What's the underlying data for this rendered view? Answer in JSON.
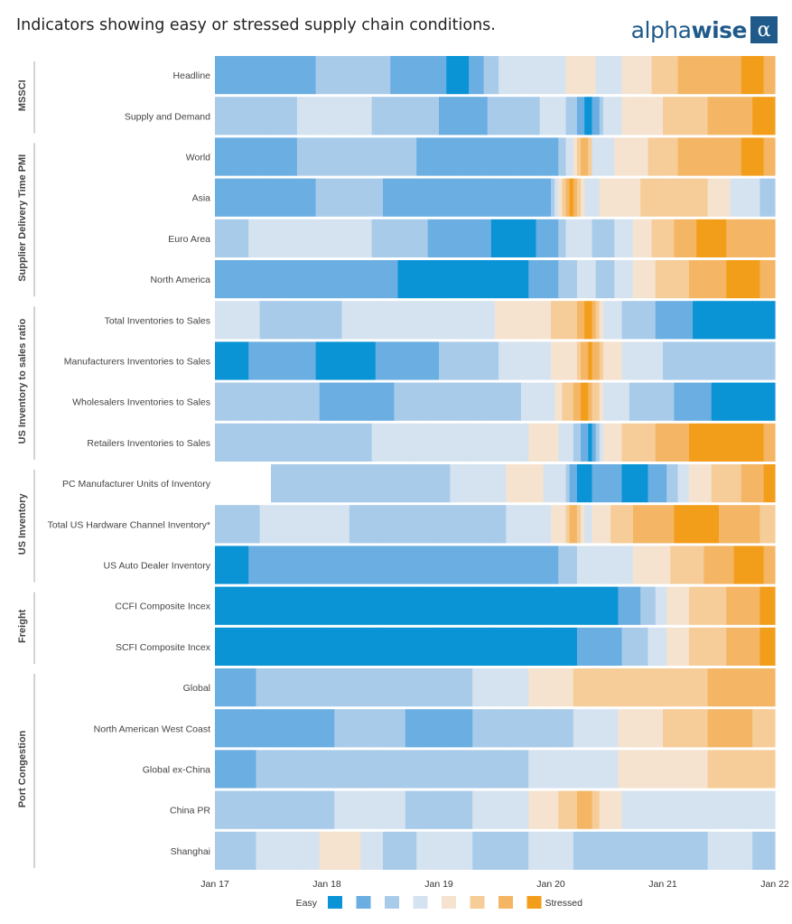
{
  "title": "Indicators showing easy or stressed supply chain conditions.",
  "logo": {
    "text_plain": "alpha",
    "text_bold": "wise",
    "mark": "α"
  },
  "chart_data": {
    "type": "heatmap",
    "x_ticks": [
      "Jan 17",
      "Jan 18",
      "Jan 19",
      "Jan 20",
      "Jan 21",
      "Jan 22"
    ],
    "x_range": [
      "Jan 17",
      "Jan 22"
    ],
    "legend": {
      "left_label": "Easy",
      "right_label": "Stressed",
      "colors": [
        "#0a94d6",
        "#6aaee2",
        "#a9cbea",
        "#d5e3f0",
        "#f5e3cf",
        "#f6cd98",
        "#f4b665",
        "#f29e1b"
      ]
    },
    "levels_scale": "0 = Easy ... 7 = Stressed",
    "groups": [
      {
        "name": "MSSCI",
        "rows": [
          "Headline",
          "Supply and Demand"
        ]
      },
      {
        "name": "Supplier Delivery Time PMI",
        "rows": [
          "World",
          "Asia",
          "Euro Area",
          "North America"
        ]
      },
      {
        "name": "US Inventory to sales ratio",
        "rows": [
          "Total Inventories to Sales",
          "Manufacturers Inventories to Sales",
          "Wholesalers Inventories to Sales",
          "Retailers Inventories to Sales"
        ]
      },
      {
        "name": "US Inventory",
        "rows": [
          "PC Manufacturer Units of Inventory",
          "Total US Hardware Channel Inventory*",
          "US Auto Dealer Inventory"
        ]
      },
      {
        "name": "Freight",
        "rows": [
          "CCFI Composite Incex",
          "SCFI Composite Incex"
        ]
      },
      {
        "name": "Port Congestion",
        "rows": [
          "Global",
          "North American West Coast",
          "Global ex-China",
          "China PR",
          "Shanghai"
        ]
      }
    ],
    "series": [
      {
        "name": "Headline",
        "start": "Jan 17",
        "keys": [
          [
            2017.0,
            1
          ],
          [
            2017.6,
            1
          ],
          [
            2018.2,
            2
          ],
          [
            2018.9,
            1
          ],
          [
            2019.2,
            0
          ],
          [
            2019.6,
            3
          ],
          [
            2020.0,
            3
          ],
          [
            2020.3,
            4
          ],
          [
            2020.5,
            3
          ],
          [
            2020.8,
            4
          ],
          [
            2021.0,
            5
          ],
          [
            2021.3,
            6
          ],
          [
            2021.6,
            6
          ],
          [
            2021.8,
            7
          ],
          [
            2022.0,
            6
          ]
        ]
      },
      {
        "name": "Supply and Demand",
        "start": "Jan 17",
        "keys": [
          [
            2017.0,
            2
          ],
          [
            2017.5,
            2
          ],
          [
            2018.0,
            3
          ],
          [
            2018.8,
            2
          ],
          [
            2019.2,
            1
          ],
          [
            2019.7,
            2
          ],
          [
            2020.1,
            3
          ],
          [
            2020.35,
            0
          ],
          [
            2020.5,
            3
          ],
          [
            2020.8,
            4
          ],
          [
            2021.2,
            5
          ],
          [
            2021.6,
            6
          ],
          [
            2022.0,
            7
          ]
        ]
      },
      {
        "name": "World",
        "start": "Jan 17",
        "keys": [
          [
            2017.0,
            1
          ],
          [
            2017.5,
            1
          ],
          [
            2018.0,
            2
          ],
          [
            2018.6,
            2
          ],
          [
            2019.0,
            1
          ],
          [
            2019.5,
            1
          ],
          [
            2020.0,
            1
          ],
          [
            2020.2,
            3
          ],
          [
            2020.3,
            6
          ],
          [
            2020.4,
            3
          ],
          [
            2020.7,
            4
          ],
          [
            2021.0,
            5
          ],
          [
            2021.3,
            6
          ],
          [
            2021.6,
            6
          ],
          [
            2021.8,
            7
          ],
          [
            2022.0,
            6
          ]
        ]
      },
      {
        "name": "Asia",
        "start": "Jan 17",
        "keys": [
          [
            2017.0,
            1
          ],
          [
            2017.6,
            1
          ],
          [
            2018.2,
            2
          ],
          [
            2018.8,
            1
          ],
          [
            2019.4,
            1
          ],
          [
            2020.0,
            1
          ],
          [
            2020.1,
            5
          ],
          [
            2020.2,
            7
          ],
          [
            2020.3,
            3
          ],
          [
            2020.6,
            4
          ],
          [
            2021.0,
            5
          ],
          [
            2021.3,
            5
          ],
          [
            2021.7,
            3
          ],
          [
            2022.0,
            2
          ]
        ]
      },
      {
        "name": "Euro Area",
        "start": "Jan 17",
        "keys": [
          [
            2017.0,
            2
          ],
          [
            2017.6,
            3
          ],
          [
            2018.2,
            3
          ],
          [
            2018.6,
            2
          ],
          [
            2019.2,
            1
          ],
          [
            2019.7,
            0
          ],
          [
            2020.0,
            1
          ],
          [
            2020.2,
            3
          ],
          [
            2020.5,
            2
          ],
          [
            2020.8,
            4
          ],
          [
            2021.2,
            6
          ],
          [
            2021.4,
            7
          ],
          [
            2021.7,
            6
          ],
          [
            2022.0,
            6
          ]
        ]
      },
      {
        "name": "North America",
        "start": "Jan 17",
        "keys": [
          [
            2017.0,
            1
          ],
          [
            2017.6,
            1
          ],
          [
            2018.3,
            1
          ],
          [
            2019.0,
            0
          ],
          [
            2019.6,
            0
          ],
          [
            2020.0,
            1
          ],
          [
            2020.3,
            3
          ],
          [
            2020.5,
            2
          ],
          [
            2020.8,
            4
          ],
          [
            2021.1,
            5
          ],
          [
            2021.4,
            6
          ],
          [
            2021.7,
            7
          ],
          [
            2022.0,
            6
          ]
        ]
      },
      {
        "name": "Total Inventories to Sales",
        "start": "Jan 17",
        "keys": [
          [
            2017.0,
            3
          ],
          [
            2017.8,
            2
          ],
          [
            2018.5,
            3
          ],
          [
            2019.2,
            3
          ],
          [
            2019.8,
            4
          ],
          [
            2020.2,
            5
          ],
          [
            2020.35,
            7
          ],
          [
            2020.5,
            3
          ],
          [
            2020.8,
            2
          ],
          [
            2021.1,
            1
          ],
          [
            2021.4,
            0
          ],
          [
            2022.0,
            0
          ]
        ]
      },
      {
        "name": "Manufacturers Inventories to Sales",
        "start": "Jan 17",
        "keys": [
          [
            2017.0,
            0
          ],
          [
            2017.6,
            1
          ],
          [
            2018.2,
            0
          ],
          [
            2018.7,
            1
          ],
          [
            2019.3,
            2
          ],
          [
            2019.8,
            3
          ],
          [
            2020.2,
            4
          ],
          [
            2020.35,
            7
          ],
          [
            2020.5,
            4
          ],
          [
            2020.8,
            3
          ],
          [
            2021.2,
            2
          ],
          [
            2022.0,
            2
          ]
        ]
      },
      {
        "name": "Wholesalers Inventories to Sales",
        "start": "Jan 17",
        "keys": [
          [
            2017.0,
            2
          ],
          [
            2017.6,
            2
          ],
          [
            2018.3,
            1
          ],
          [
            2018.9,
            2
          ],
          [
            2019.5,
            2
          ],
          [
            2020.0,
            3
          ],
          [
            2020.3,
            7
          ],
          [
            2020.5,
            3
          ],
          [
            2020.9,
            2
          ],
          [
            2021.3,
            1
          ],
          [
            2021.6,
            0
          ],
          [
            2022.0,
            0
          ]
        ]
      },
      {
        "name": "Retailers Inventories to Sales",
        "start": "Jan 17",
        "keys": [
          [
            2017.0,
            2
          ],
          [
            2018.0,
            2
          ],
          [
            2018.8,
            3
          ],
          [
            2019.6,
            3
          ],
          [
            2020.0,
            4
          ],
          [
            2020.25,
            2
          ],
          [
            2020.35,
            0
          ],
          [
            2020.5,
            4
          ],
          [
            2020.8,
            5
          ],
          [
            2021.1,
            6
          ],
          [
            2021.4,
            7
          ],
          [
            2021.8,
            7
          ],
          [
            2022.0,
            6
          ]
        ]
      },
      {
        "name": "PC Manufacturer Units of Inventory",
        "start": "Jul 17",
        "keys": [
          [
            2017.45,
            2
          ],
          [
            2018.0,
            2
          ],
          [
            2018.8,
            2
          ],
          [
            2019.4,
            3
          ],
          [
            2019.8,
            4
          ],
          [
            2020.1,
            3
          ],
          [
            2020.25,
            0
          ],
          [
            2020.5,
            1
          ],
          [
            2020.8,
            0
          ],
          [
            2021.1,
            2
          ],
          [
            2021.3,
            4
          ],
          [
            2021.6,
            5
          ],
          [
            2021.8,
            6
          ],
          [
            2022.0,
            7
          ]
        ]
      },
      {
        "name": "Total US Hardware Channel Inventory*",
        "start": "Jan 17",
        "keys": [
          [
            2017.0,
            2
          ],
          [
            2017.8,
            3
          ],
          [
            2018.6,
            2
          ],
          [
            2019.3,
            2
          ],
          [
            2019.9,
            3
          ],
          [
            2020.1,
            4
          ],
          [
            2020.2,
            6
          ],
          [
            2020.3,
            3
          ],
          [
            2020.6,
            5
          ],
          [
            2020.9,
            6
          ],
          [
            2021.3,
            7
          ],
          [
            2021.7,
            6
          ],
          [
            2022.0,
            5
          ]
        ]
      },
      {
        "name": "US Auto Dealer Inventory",
        "start": "Jan 17",
        "keys": [
          [
            2017.0,
            0
          ],
          [
            2017.6,
            1
          ],
          [
            2018.3,
            1
          ],
          [
            2019.0,
            1
          ],
          [
            2019.6,
            1
          ],
          [
            2020.0,
            1
          ],
          [
            2020.3,
            3
          ],
          [
            2020.6,
            3
          ],
          [
            2020.9,
            4
          ],
          [
            2021.2,
            5
          ],
          [
            2021.5,
            6
          ],
          [
            2021.8,
            7
          ],
          [
            2022.0,
            6
          ]
        ]
      },
      {
        "name": "CCFI Composite Incex",
        "start": "Jan 17",
        "keys": [
          [
            2017.0,
            0
          ],
          [
            2017.6,
            0
          ],
          [
            2018.2,
            0
          ],
          [
            2018.9,
            0
          ],
          [
            2019.5,
            0
          ],
          [
            2020.0,
            0
          ],
          [
            2020.5,
            0
          ],
          [
            2020.7,
            1
          ],
          [
            2020.9,
            2
          ],
          [
            2021.1,
            4
          ],
          [
            2021.4,
            5
          ],
          [
            2021.7,
            6
          ],
          [
            2022.0,
            7
          ]
        ]
      },
      {
        "name": "SCFI Composite Incex",
        "start": "Jan 17",
        "keys": [
          [
            2017.0,
            0
          ],
          [
            2017.6,
            0
          ],
          [
            2018.2,
            0
          ],
          [
            2018.9,
            0
          ],
          [
            2019.5,
            0
          ],
          [
            2020.0,
            0
          ],
          [
            2020.5,
            1
          ],
          [
            2020.8,
            2
          ],
          [
            2021.1,
            4
          ],
          [
            2021.4,
            5
          ],
          [
            2021.7,
            6
          ],
          [
            2022.0,
            7
          ]
        ]
      },
      {
        "name": "Global",
        "start": "Jan 17",
        "keys": [
          [
            2017.0,
            1
          ],
          [
            2017.7,
            2
          ],
          [
            2018.4,
            2
          ],
          [
            2019.0,
            2
          ],
          [
            2019.6,
            3
          ],
          [
            2020.0,
            4
          ],
          [
            2020.4,
            5
          ],
          [
            2020.8,
            5
          ],
          [
            2021.2,
            5
          ],
          [
            2021.6,
            6
          ],
          [
            2022.0,
            6
          ]
        ]
      },
      {
        "name": "North American West Coast",
        "start": "Jan 17",
        "keys": [
          [
            2017.0,
            1
          ],
          [
            2017.7,
            1
          ],
          [
            2018.4,
            2
          ],
          [
            2019.0,
            1
          ],
          [
            2019.6,
            2
          ],
          [
            2020.0,
            2
          ],
          [
            2020.4,
            3
          ],
          [
            2020.8,
            4
          ],
          [
            2021.2,
            5
          ],
          [
            2021.6,
            6
          ],
          [
            2022.0,
            5
          ]
        ]
      },
      {
        "name": "Global ex-China",
        "start": "Jan 17",
        "keys": [
          [
            2017.0,
            1
          ],
          [
            2017.7,
            2
          ],
          [
            2018.4,
            2
          ],
          [
            2019.0,
            2
          ],
          [
            2019.6,
            2
          ],
          [
            2020.0,
            3
          ],
          [
            2020.4,
            3
          ],
          [
            2020.8,
            4
          ],
          [
            2021.2,
            4
          ],
          [
            2021.6,
            5
          ],
          [
            2022.0,
            5
          ]
        ]
      },
      {
        "name": "China PR",
        "start": "Jan 17",
        "keys": [
          [
            2017.0,
            2
          ],
          [
            2017.7,
            2
          ],
          [
            2018.4,
            3
          ],
          [
            2019.0,
            2
          ],
          [
            2019.6,
            3
          ],
          [
            2020.0,
            4
          ],
          [
            2020.3,
            6
          ],
          [
            2020.5,
            4
          ],
          [
            2020.8,
            3
          ],
          [
            2021.2,
            3
          ],
          [
            2021.6,
            3
          ],
          [
            2022.0,
            3
          ]
        ]
      },
      {
        "name": "Shanghai",
        "start": "Jan 17",
        "keys": [
          [
            2017.0,
            2
          ],
          [
            2017.7,
            3
          ],
          [
            2018.2,
            4
          ],
          [
            2018.6,
            2
          ],
          [
            2019.0,
            3
          ],
          [
            2019.6,
            2
          ],
          [
            2020.0,
            3
          ],
          [
            2020.4,
            2
          ],
          [
            2020.8,
            2
          ],
          [
            2021.2,
            2
          ],
          [
            2021.6,
            3
          ],
          [
            2022.0,
            2
          ]
        ]
      }
    ]
  }
}
